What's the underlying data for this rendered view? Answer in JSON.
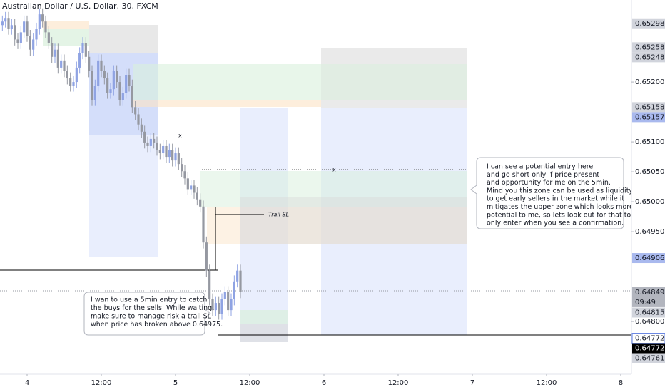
{
  "chart_data": {
    "type": "candlestick",
    "title": "Australian Dollar / U.S. Dollar, 30, FXCM",
    "x": [
      -8,
      -7,
      -6,
      -5,
      -4,
      -3,
      -2,
      -1,
      0,
      1,
      2,
      3,
      4,
      5,
      6,
      7,
      8,
      9,
      10,
      11,
      12,
      13,
      14,
      15,
      16,
      17,
      18,
      19,
      20,
      21,
      22,
      23,
      24,
      25,
      26,
      27,
      28,
      29,
      30,
      31,
      32,
      33,
      34,
      35,
      36,
      37,
      38,
      39,
      40,
      41,
      42,
      43,
      44,
      45,
      46,
      47,
      48,
      49,
      50,
      51,
      52,
      53,
      54,
      55,
      56,
      57,
      58,
      59,
      60,
      61,
      62,
      63,
      64,
      65,
      66,
      67,
      68,
      69
    ],
    "open": [
      0.65295,
      0.65301,
      0.65307,
      0.65289,
      0.65295,
      0.65271,
      0.65265,
      0.65283,
      0.65301,
      0.65277,
      0.65254,
      0.65271,
      0.65289,
      0.65313,
      0.65301,
      0.65283,
      0.65265,
      0.65242,
      0.65254,
      0.65224,
      0.65236,
      0.65218,
      0.65206,
      0.65194,
      0.652,
      0.65224,
      0.65248,
      0.65265,
      0.65242,
      0.65218,
      0.6517,
      0.65194,
      0.65236,
      0.65218,
      0.65206,
      0.65182,
      0.65188,
      0.65218,
      0.652,
      0.6517,
      0.65182,
      0.65212,
      0.65194,
      0.65158,
      0.65146,
      0.65129,
      0.65117,
      0.65099,
      0.65093,
      0.65105,
      0.65099,
      0.65087,
      0.65081,
      0.65093,
      0.65075,
      0.65087,
      0.65069,
      0.65081,
      0.65063,
      0.65051,
      0.65039,
      0.65021,
      0.65027,
      0.65015,
      0.65004,
      0.64992,
      0.64932,
      0.64885,
      0.64837,
      0.64819,
      0.64831,
      0.64813,
      0.64837,
      0.64849,
      0.64819,
      0.64837,
      0.64867,
      0.64885
    ],
    "high": [
      0.65311,
      0.65317,
      0.65317,
      0.65305,
      0.65305,
      0.65281,
      0.65293,
      0.65311,
      0.65311,
      0.65287,
      0.65281,
      0.65299,
      0.65323,
      0.65323,
      0.65311,
      0.65293,
      0.65275,
      0.65264,
      0.65264,
      0.65246,
      0.65246,
      0.65228,
      0.65216,
      0.6521,
      0.65234,
      0.65258,
      0.65275,
      0.65275,
      0.65252,
      0.65228,
      0.65204,
      0.65246,
      0.65246,
      0.65228,
      0.65216,
      0.65198,
      0.65228,
      0.65228,
      0.6521,
      0.65192,
      0.65222,
      0.65222,
      0.65204,
      0.65168,
      0.65156,
      0.65139,
      0.65127,
      0.65109,
      0.65115,
      0.65115,
      0.65109,
      0.65097,
      0.65103,
      0.65103,
      0.65097,
      0.65097,
      0.65091,
      0.65091,
      0.65073,
      0.65061,
      0.65049,
      0.65037,
      0.65037,
      0.65025,
      0.65014,
      0.65002,
      0.64942,
      0.64895,
      0.64847,
      0.64841,
      0.64841,
      0.64847,
      0.64859,
      0.64859,
      0.64847,
      0.64877,
      0.64895,
      0.64895
    ],
    "low": [
      0.65285,
      0.65291,
      0.65279,
      0.65279,
      0.65261,
      0.65255,
      0.65255,
      0.65273,
      0.65267,
      0.65244,
      0.65244,
      0.65261,
      0.65279,
      0.65291,
      0.65273,
      0.65255,
      0.65232,
      0.65232,
      0.65214,
      0.65214,
      0.65208,
      0.65196,
      0.65184,
      0.65184,
      0.6519,
      0.65214,
      0.65238,
      0.65232,
      0.65208,
      0.6516,
      0.6516,
      0.65184,
      0.65208,
      0.65196,
      0.65172,
      0.65172,
      0.65178,
      0.6519,
      0.6516,
      0.6516,
      0.65172,
      0.65184,
      0.65148,
      0.65136,
      0.65119,
      0.65107,
      0.65089,
      0.65083,
      0.65083,
      0.65089,
      0.65077,
      0.65071,
      0.65071,
      0.65065,
      0.65065,
      0.65059,
      0.65059,
      0.65053,
      0.65041,
      0.65029,
      0.65011,
      0.65011,
      0.65005,
      0.64994,
      0.64982,
      0.64922,
      0.64875,
      0.64827,
      0.64809,
      0.64809,
      0.64803,
      0.64803,
      0.64827,
      0.64809,
      0.64809,
      0.64827,
      0.64857,
      0.64839
    ],
    "close": [
      0.65301,
      0.65307,
      0.65289,
      0.65295,
      0.65271,
      0.65265,
      0.65283,
      0.65301,
      0.65277,
      0.65254,
      0.65271,
      0.65289,
      0.65313,
      0.65301,
      0.65283,
      0.65265,
      0.65242,
      0.65254,
      0.65224,
      0.65236,
      0.65218,
      0.65206,
      0.65194,
      0.652,
      0.65224,
      0.65248,
      0.65265,
      0.65242,
      0.65218,
      0.6517,
      0.65194,
      0.65236,
      0.65218,
      0.65206,
      0.65182,
      0.65188,
      0.65218,
      0.652,
      0.6517,
      0.65182,
      0.65212,
      0.65194,
      0.65158,
      0.65146,
      0.65129,
      0.65117,
      0.65099,
      0.65093,
      0.65105,
      0.65099,
      0.65087,
      0.65081,
      0.65093,
      0.65075,
      0.65087,
      0.65069,
      0.65081,
      0.65063,
      0.65051,
      0.65039,
      0.65021,
      0.65027,
      0.65015,
      0.65004,
      0.64992,
      0.64932,
      0.64885,
      0.64837,
      0.64819,
      0.64831,
      0.64813,
      0.64837,
      0.64849,
      0.64819,
      0.64837,
      0.64867,
      0.64885,
      0.64849
    ],
    "up_color": "#8fa3e3",
    "down_color": "#9598a1",
    "xlim": [
      -8.77,
      195.46
    ],
    "xticks": [
      {
        "value": 0,
        "label": "4"
      },
      {
        "value": 24,
        "label": "12:00"
      },
      {
        "value": 48,
        "label": "5"
      },
      {
        "value": 72,
        "label": "12:00"
      },
      {
        "value": 96,
        "label": "6"
      },
      {
        "value": 120,
        "label": "12:00"
      },
      {
        "value": 144,
        "label": "7"
      },
      {
        "value": 168,
        "label": "12:00"
      },
      {
        "value": 192,
        "label": "8"
      }
    ],
    "ylim": [
      0.64712,
      0.65337
    ],
    "yticks": [
      {
        "value": 0.652,
        "label": "0.65200"
      },
      {
        "value": 0.651,
        "label": "0.65100"
      },
      {
        "value": 0.6505,
        "label": "0.65050"
      },
      {
        "value": 0.65,
        "label": "0.65000"
      },
      {
        "value": 0.6495,
        "label": "0.64950"
      },
      {
        "value": 0.648,
        "label": "0.64800"
      }
    ],
    "grid": false,
    "price_labels": [
      {
        "value": 0.65298,
        "label": "0.65298",
        "bg": "#d1d4dc",
        "fg": "#131722"
      },
      {
        "value": 0.65258,
        "label": "0.65258",
        "bg": "#d1d4dc",
        "fg": "#131722"
      },
      {
        "value": 0.65248,
        "label": "0.65248",
        "bg": "#d1d4dc",
        "fg": "#131722"
      },
      {
        "value": 0.65158,
        "label": "0.65158",
        "bg": "#d1d4dc",
        "fg": "#131722"
      },
      {
        "value": 0.65157,
        "label": "0.65157",
        "bg": "#a9b9ee",
        "fg": "#131722"
      },
      {
        "value": 0.64906,
        "label": "0.64906",
        "bg": "#a9b9ee",
        "fg": "#131722"
      },
      {
        "value": 0.64849,
        "label": "0.64849",
        "bg": "#b2b5be",
        "fg": "#131722",
        "countdown": "09:49"
      },
      {
        "value": 0.64815,
        "label": "0.64815",
        "bg": "#d1d4dc",
        "fg": "#131722"
      },
      {
        "value": 0.64772,
        "label": "0.64772",
        "bg": "#ffffff",
        "fg": "#131722",
        "border": "#5b7be0"
      },
      {
        "value": 0.64772,
        "label": "0.64772",
        "bg": "#000000",
        "fg": "#ffffff"
      },
      {
        "value": 0.64761,
        "label": "0.64761",
        "bg": "#d1d4dc",
        "fg": "#131722"
      }
    ],
    "notes": {
      "entry": [
        "I can see a potential entry here",
        "and go short only if price present",
        "and opportunity for me on the 5min.",
        "Mind you this zone can be used as liquidity",
        "to get early sellers in the market while it",
        "mitigates the upper zone which looks more",
        "potential to me, so lets look out for that too,",
        "only enter when you see a confirmation."
      ],
      "wait": [
        "I wan to use a 5min entry to catch",
        "the buys for the sells. While waiting,",
        "make sure to manage risk a trail SL",
        "when price has broken above 0.64975."
      ],
      "trail_sl": "Trail SL",
      "markers": [
        "x",
        "x"
      ]
    }
  }
}
